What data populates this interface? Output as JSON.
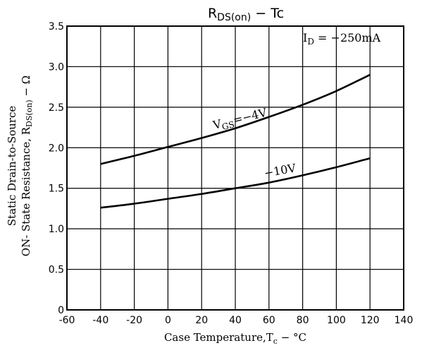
{
  "chart_data": {
    "type": "line",
    "title": "R_DS(on) – Tc",
    "title_parts": {
      "main": "R",
      "sub": "DS(on)",
      "rest": " − Tc"
    },
    "xlabel": "Case Temperature,T_c − °C",
    "xlabel_parts": {
      "main": "Case Temperature,T",
      "sub": "c",
      "rest": " − °C"
    },
    "ylabel": "Static Drain-to-Source ON- State Resistance, R_DS(on) − Ω",
    "ylabel_line1": "Static Drain-to-Source",
    "ylabel_line2_parts": {
      "main": "ON- State Resistance, R",
      "sub": "DS(on)",
      "rest": " − Ω"
    },
    "xlim": [
      -60,
      140
    ],
    "ylim": [
      0,
      3.5
    ],
    "x_ticks": [
      "-60",
      "-40",
      "-20",
      "0",
      "20",
      "40",
      "60",
      "80",
      "100",
      "120",
      "140"
    ],
    "y_ticks": [
      "0",
      "0.5",
      "1.0",
      "1.5",
      "2.0",
      "2.5",
      "3.0",
      "3.5"
    ],
    "grid": true,
    "condition": {
      "main": "I",
      "sub": "D",
      "rest": " = −250mA"
    },
    "series": [
      {
        "name": "VGS=−4V",
        "label_parts": {
          "main": "V",
          "sub": "GS",
          "rest": "=−4V"
        },
        "x": [
          -40,
          -20,
          0,
          20,
          40,
          60,
          80,
          100,
          120
        ],
        "y": [
          1.8,
          1.9,
          2.01,
          2.12,
          2.24,
          2.38,
          2.53,
          2.7,
          2.9
        ]
      },
      {
        "name": "−10V",
        "label_parts": {
          "main": "−10V",
          "sub": "",
          "rest": ""
        },
        "x": [
          -40,
          -20,
          0,
          20,
          40,
          60,
          80,
          100,
          120
        ],
        "y": [
          1.26,
          1.31,
          1.37,
          1.43,
          1.5,
          1.57,
          1.66,
          1.76,
          1.87
        ]
      }
    ]
  }
}
